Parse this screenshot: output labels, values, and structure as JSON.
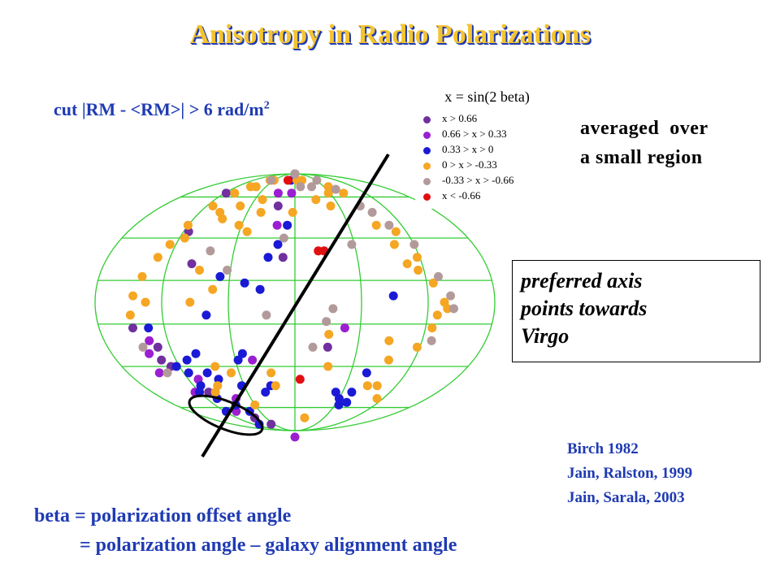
{
  "title": "Anisotropy in Radio Polarizations",
  "cut_label": {
    "text": "cut |RM - <RM>| > 6 rad/m",
    "sup": "2"
  },
  "averaged": {
    "line1": "averaged  over",
    "line2": "a small region"
  },
  "axis_note": {
    "line1": "preferred axis",
    "line2": "points towards",
    "line3": "Virgo"
  },
  "references": [
    "Birch 1982",
    "Jain, Ralston, 1999",
    "Jain, Sarala, 2003"
  ],
  "beta_def": {
    "line1": "beta = polarization offset angle",
    "line2": "= polarization angle – galaxy alignment angle"
  },
  "colors": {
    "title_fill": "#f4c430",
    "title_outline": "#1f3bb3",
    "text_blue": "#1f3bb3",
    "grid": "#33cc33",
    "c1": "#7030a0",
    "c2": "#9b1fd1",
    "c3": "#1a1ad6",
    "c4": "#f5a623",
    "c5": "#b39a9a",
    "c6": "#e01010"
  },
  "chart_data": {
    "type": "scatter",
    "projection": "aitoff sky map",
    "legend": {
      "title": "x = sin(2 beta)",
      "entries": [
        {
          "label": "x > 0.66",
          "color": "#7030a0"
        },
        {
          "label": "0.66 > x > 0.33",
          "color": "#9b1fd1"
        },
        {
          "label": "0.33 > x > 0",
          "color": "#1a1ad6"
        },
        {
          "label": "0 > x > -0.33",
          "color": "#f5a623"
        },
        {
          "label": "-0.33 > x > -0.66",
          "color": "#b39a9a"
        },
        {
          "label": "x < -0.66",
          "color": "#e01010"
        }
      ],
      "placement": "top-right"
    },
    "grid": true,
    "series": [
      {
        "name": "x > 0.66",
        "points": [
          [
            -2.3,
            -0.35
          ],
          [
            -2.35,
            -0.45
          ],
          [
            -2.25,
            -0.5
          ],
          [
            -2.05,
            0.85
          ],
          [
            -2.0,
            0.55
          ],
          [
            -1.7,
            0.3
          ],
          [
            -0.4,
            0.75
          ],
          [
            -0.2,
            0.35
          ],
          [
            0.55,
            -0.35
          ],
          [
            -1.2,
            -0.95
          ],
          [
            -2.6,
            -0.2
          ],
          [
            -1.45,
            -0.9
          ],
          [
            -1.9,
            -0.7
          ]
        ]
      },
      {
        "name": "0.66 > x > 0.33",
        "points": [
          [
            -2.4,
            -0.3
          ],
          [
            -2.5,
            -0.4
          ],
          [
            -2.2,
            -0.7
          ],
          [
            -1.9,
            -0.6
          ],
          [
            -1.4,
            -0.75
          ],
          [
            -0.75,
            -0.45
          ],
          [
            -0.1,
            0.85
          ],
          [
            -0.35,
            0.6
          ],
          [
            -2.55,
            -0.55
          ],
          [
            -1.2,
            -1.05
          ],
          [
            -1.75,
            -0.85
          ],
          [
            -0.5,
            0.85
          ],
          [
            0.8,
            -0.2
          ]
        ]
      },
      {
        "name": "0.33 > x > 0",
        "points": [
          [
            -2.15,
            -0.5
          ],
          [
            -2.0,
            -0.55
          ],
          [
            -1.95,
            -0.65
          ],
          [
            -2.1,
            -0.7
          ],
          [
            -1.85,
            -0.75
          ],
          [
            -2.05,
            -0.85
          ],
          [
            -1.8,
            -0.95
          ],
          [
            -1.65,
            -0.55
          ],
          [
            -1.5,
            -0.6
          ],
          [
            -1.55,
            -0.8
          ],
          [
            -1.35,
            -0.85
          ],
          [
            -1.1,
            -0.65
          ],
          [
            -1.0,
            -0.45
          ],
          [
            -0.8,
            0.15
          ],
          [
            -0.45,
            0.35
          ],
          [
            -0.55,
            0.1
          ],
          [
            -0.3,
            0.45
          ],
          [
            -0.15,
            0.6
          ],
          [
            -1.2,
            0.2
          ],
          [
            -1.4,
            -0.1
          ],
          [
            -0.9,
            -0.4
          ],
          [
            -0.65,
            -0.7
          ],
          [
            -0.5,
            -0.65
          ],
          [
            0.9,
            -0.7
          ],
          [
            1.05,
            -0.75
          ],
          [
            1.15,
            -0.8
          ],
          [
            1.25,
            -0.7
          ],
          [
            1.35,
            -0.55
          ],
          [
            1.55,
            0.05
          ],
          [
            0.4,
            1.0
          ],
          [
            -0.2,
            0.95
          ],
          [
            -1.7,
            -0.4
          ],
          [
            -1.9,
            -0.45
          ],
          [
            -2.35,
            -0.2
          ],
          [
            1.3,
            -0.78
          ]
        ]
      },
      {
        "name": "0 > x > -0.33",
        "points": [
          [
            -2.45,
            0.2
          ],
          [
            -2.55,
            0.05
          ],
          [
            -2.3,
            0.35
          ],
          [
            -2.2,
            0.45
          ],
          [
            -2.1,
            0.6
          ],
          [
            -1.95,
            0.75
          ],
          [
            -1.8,
            0.85
          ],
          [
            -1.6,
            0.9
          ],
          [
            -1.4,
            0.9
          ],
          [
            -1.25,
            0.95
          ],
          [
            -1.05,
            0.95
          ],
          [
            -0.85,
            0.8
          ],
          [
            -0.75,
            0.7
          ],
          [
            -0.9,
            0.55
          ],
          [
            -1.1,
            0.6
          ],
          [
            -1.3,
            0.75
          ],
          [
            -1.5,
            0.65
          ],
          [
            -1.65,
            0.7
          ],
          [
            -2.0,
            0.5
          ],
          [
            -2.35,
            0.0
          ],
          [
            -2.6,
            -0.1
          ],
          [
            -1.55,
            0.25
          ],
          [
            -1.3,
            0.1
          ],
          [
            -1.65,
            0.0
          ],
          [
            -1.45,
            -0.5
          ],
          [
            -1.2,
            -0.55
          ],
          [
            -1.6,
            -0.65
          ],
          [
            -1.75,
            -0.7
          ],
          [
            -1.05,
            -0.8
          ],
          [
            -0.45,
            -0.55
          ],
          [
            -0.4,
            -0.65
          ],
          [
            0.35,
            0.95
          ],
          [
            0.55,
            0.8
          ],
          [
            0.85,
            0.75
          ],
          [
            1.0,
            0.85
          ],
          [
            1.2,
            0.9
          ],
          [
            1.45,
            0.85
          ],
          [
            1.6,
            0.6
          ],
          [
            1.75,
            0.45
          ],
          [
            1.85,
            0.3
          ],
          [
            2.05,
            0.35
          ],
          [
            2.2,
            0.15
          ],
          [
            2.35,
            0.0
          ],
          [
            2.4,
            -0.05
          ],
          [
            2.2,
            -0.2
          ],
          [
            2.05,
            -0.35
          ],
          [
            1.55,
            -0.3
          ],
          [
            1.65,
            -0.45
          ],
          [
            1.5,
            -0.65
          ],
          [
            0.55,
            -0.25
          ],
          [
            0.6,
            -0.5
          ],
          [
            0.35,
            -0.9
          ],
          [
            0.1,
            0.95
          ],
          [
            -0.05,
            0.7
          ],
          [
            1.9,
            0.55
          ],
          [
            2.0,
            0.25
          ],
          [
            2.25,
            -0.1
          ],
          [
            1.95,
            -0.75
          ],
          [
            1.7,
            -0.65
          ]
        ]
      },
      {
        "name": "-0.33 > x > -0.66",
        "points": [
          [
            -0.95,
            1.0
          ],
          [
            -0.75,
            1.0
          ],
          [
            -0.55,
            1.0
          ],
          [
            -0.35,
            1.0
          ],
          [
            -0.15,
            1.0
          ],
          [
            -1.2,
            0.95
          ],
          [
            0.2,
            0.9
          ],
          [
            0.6,
            0.9
          ],
          [
            1.1,
            0.95
          ],
          [
            1.35,
            0.88
          ],
          [
            1.55,
            0.75
          ],
          [
            1.7,
            0.7
          ],
          [
            1.85,
            0.6
          ],
          [
            2.1,
            0.45
          ],
          [
            2.3,
            0.2
          ],
          [
            2.45,
            0.05
          ],
          [
            2.5,
            -0.05
          ],
          [
            0.3,
            -0.35
          ],
          [
            0.6,
            -0.05
          ],
          [
            -0.45,
            -0.1
          ],
          [
            0.5,
            -0.15
          ],
          [
            -0.2,
            0.5
          ],
          [
            1.0,
            0.45
          ],
          [
            -2.55,
            -0.35
          ],
          [
            -2.4,
            -0.55
          ],
          [
            2.25,
            -0.3
          ],
          [
            -1.45,
            0.4
          ],
          [
            -1.1,
            0.25
          ]
        ]
      },
      {
        "name": "x < -0.66",
        "points": [
          [
            -0.35,
            0.95
          ],
          [
            0.4,
            0.4
          ],
          [
            0.5,
            0.4
          ],
          [
            0.1,
            -0.6
          ]
        ]
      }
    ],
    "annotations": [
      "preferred axis line",
      "ellipse near Virgo"
    ]
  }
}
